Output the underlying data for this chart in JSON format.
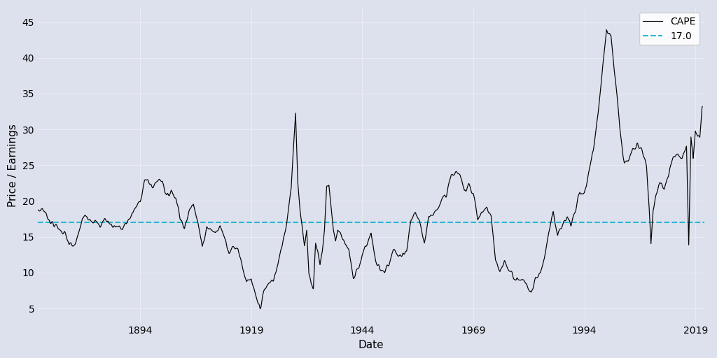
{
  "title": "",
  "xlabel": "Date",
  "ylabel": "Price / Earnings",
  "mean_line": 17.0,
  "mean_label": "17.0",
  "cape_label": "CAPE",
  "line_color": "#000000",
  "mean_color": "#29b6d4",
  "bg_color": "#dde1ed",
  "grid_color": "#eaecf4",
  "ylim": [
    3,
    47
  ],
  "xlim_start": 1871,
  "xlim_end": 2021,
  "xticks": [
    1894,
    1919,
    1944,
    1969,
    1994,
    2019
  ],
  "yticks": [
    5,
    10,
    15,
    20,
    25,
    30,
    35,
    40,
    45
  ],
  "legend_loc": "upper right"
}
